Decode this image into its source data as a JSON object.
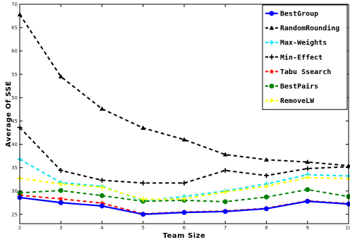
{
  "chart_data": {
    "type": "line",
    "title": "",
    "xlabel": "Team Size",
    "ylabel": "Average Of SSE",
    "x": [
      2,
      3,
      4,
      5,
      6,
      7,
      8,
      9,
      10
    ],
    "xticks": [
      "2",
      "3",
      "4",
      "5",
      "6",
      "7",
      "8",
      "9",
      "10"
    ],
    "xlim": [
      2,
      10
    ],
    "yticks": [
      "25",
      "30",
      "35",
      "40",
      "45",
      "50",
      "55",
      "60",
      "65",
      "70"
    ],
    "ylim": [
      23,
      70
    ],
    "grid": false,
    "legend_position": "top-right",
    "series": [
      {
        "name": "BestGroup",
        "color": "#0000ff",
        "line_style": "solid",
        "marker": "circle",
        "values": [
          28.6,
          27.5,
          26.8,
          25.0,
          25.4,
          25.6,
          26.2,
          27.8,
          27.2
        ]
      },
      {
        "name": "RandomRounding",
        "color": "#000000",
        "line_style": "dashed",
        "marker": "triangle",
        "values": [
          67.8,
          54.5,
          47.6,
          43.5,
          41.0,
          37.8,
          36.7,
          36.2,
          35.4
        ]
      },
      {
        "name": "Max-Weights",
        "color": "#00e5ee",
        "line_style": "dashed",
        "marker": "plus",
        "values": [
          36.8,
          31.8,
          31.0,
          27.9,
          28.8,
          30.0,
          31.5,
          33.5,
          33.2
        ]
      },
      {
        "name": "Min-Effect",
        "color": "#000000",
        "line_style": "dashed",
        "marker": "plus",
        "values": [
          43.6,
          34.4,
          32.3,
          31.7,
          31.7,
          34.4,
          33.3,
          34.8,
          35.2
        ]
      },
      {
        "name": "Tabu Ssearch",
        "color": "#ff0000",
        "line_style": "dashed",
        "marker": "star",
        "values": [
          29.1,
          28.3,
          27.4,
          25.1,
          25.5,
          25.7,
          26.3,
          27.9,
          27.3
        ]
      },
      {
        "name": "BestPairs",
        "color": "#008000",
        "line_style": "dashed",
        "marker": "circle",
        "values": [
          29.6,
          30.1,
          29.0,
          27.8,
          28.0,
          27.7,
          28.7,
          30.3,
          28.8
        ]
      },
      {
        "name": "RemoveLW",
        "color": "#ffff00",
        "line_style": "dashed",
        "marker": "plus",
        "values": [
          32.7,
          31.5,
          30.8,
          28.2,
          28.3,
          29.8,
          31.0,
          32.9,
          32.6
        ]
      }
    ]
  }
}
